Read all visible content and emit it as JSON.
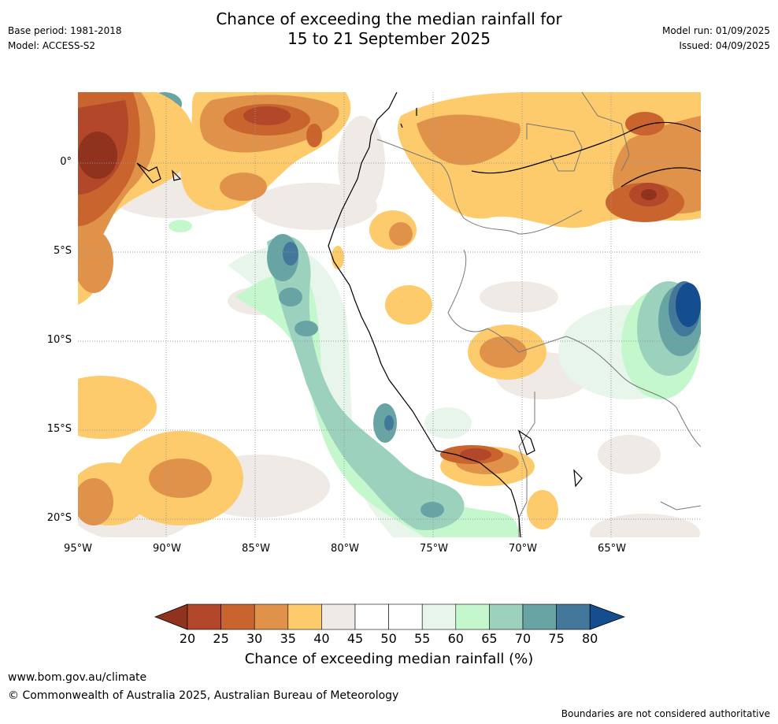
{
  "title_line1": "Chance of exceeding the median rainfall for",
  "title_line2": "15 to 21 September 2025",
  "base_period": "Base period: 1981-2018",
  "model": "Model: ACCESS-S2",
  "model_run": "Model run: 01/09/2025",
  "issued": "Issued: 04/09/2025",
  "lat_labels": [
    "0°",
    "5°S",
    "10°S",
    "15°S",
    "20°S"
  ],
  "lon_labels": [
    "95°W",
    "90°W",
    "85°W",
    "80°W",
    "75°W",
    "70°W",
    "65°W"
  ],
  "colorbar": {
    "ticks": [
      "20",
      "25",
      "30",
      "35",
      "40",
      "45",
      "50",
      "55",
      "60",
      "65",
      "70",
      "75",
      "80"
    ],
    "colors": [
      "#8f321e",
      "#b2472a",
      "#c9642f",
      "#e1924a",
      "#fdcb6b",
      "#efeae5",
      "#ffffff",
      "#ffffff",
      "#e8f5ea",
      "#c4f8cc",
      "#9cd1bd",
      "#69a4a5",
      "#43789a",
      "#154e8f"
    ],
    "label": "Chance of exceeding median rainfall (%)"
  },
  "url": "www.bom.gov.au/climate",
  "copyright": "© Commonwealth of Australia 2025, Australian Bureau of Meteorology",
  "disclaimer": "Boundaries are not considered authoritative"
}
